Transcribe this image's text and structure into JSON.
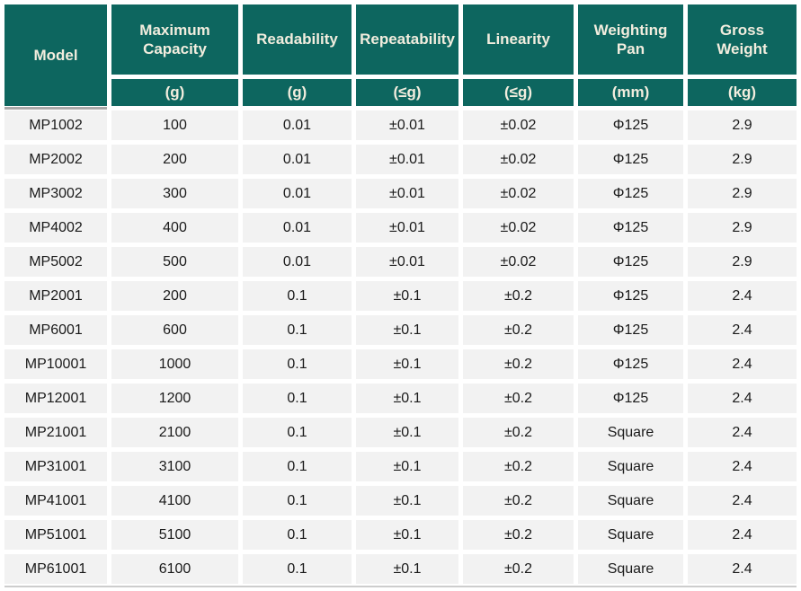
{
  "table": {
    "columns": [
      {
        "label": "Model",
        "unit": ""
      },
      {
        "label": "Maximum Capacity",
        "unit": "(g)"
      },
      {
        "label": "Readability",
        "unit": "(g)"
      },
      {
        "label": "Repeatability",
        "unit": "(≤g)"
      },
      {
        "label": "Linearity",
        "unit": "(≤g)"
      },
      {
        "label": "Weighting Pan",
        "unit": "(mm)"
      },
      {
        "label": "Gross Weight",
        "unit": "(kg)"
      }
    ],
    "rows": [
      [
        "MP1002",
        "100",
        "0.01",
        "±0.01",
        "±0.02",
        "Φ125",
        "2.9"
      ],
      [
        "MP2002",
        "200",
        "0.01",
        "±0.01",
        "±0.02",
        "Φ125",
        "2.9"
      ],
      [
        "MP3002",
        "300",
        "0.01",
        "±0.01",
        "±0.02",
        "Φ125",
        "2.9"
      ],
      [
        "MP4002",
        "400",
        "0.01",
        "±0.01",
        "±0.02",
        "Φ125",
        "2.9"
      ],
      [
        "MP5002",
        "500",
        "0.01",
        "±0.01",
        "±0.02",
        "Φ125",
        "2.9"
      ],
      [
        "MP2001",
        "200",
        "0.1",
        "±0.1",
        "±0.2",
        "Φ125",
        "2.4"
      ],
      [
        "MP6001",
        "600",
        "0.1",
        "±0.1",
        "±0.2",
        "Φ125",
        "2.4"
      ],
      [
        "MP10001",
        "1000",
        "0.1",
        "±0.1",
        "±0.2",
        "Φ125",
        "2.4"
      ],
      [
        "MP12001",
        "1200",
        "0.1",
        "±0.1",
        "±0.2",
        "Φ125",
        "2.4"
      ],
      [
        "MP21001",
        "2100",
        "0.1",
        "±0.1",
        "±0.2",
        "Square",
        "2.4"
      ],
      [
        "MP31001",
        "3100",
        "0.1",
        "±0.1",
        "±0.2",
        "Square",
        "2.4"
      ],
      [
        "MP41001",
        "4100",
        "0.1",
        "±0.1",
        "±0.2",
        "Square",
        "2.4"
      ],
      [
        "MP51001",
        "5100",
        "0.1",
        "±0.1",
        "±0.2",
        "Square",
        "2.4"
      ],
      [
        "MP61001",
        "6100",
        "0.1",
        "±0.1",
        "±0.2",
        "Square",
        "2.4"
      ]
    ]
  },
  "colors": {
    "header_bg": "#0d665f",
    "header_text": "#f2edde",
    "row_bg": "#f2f2f2",
    "body_text": "#1a1a1a",
    "model_shadow_line": "#a9a9a9",
    "bottom_line": "#cdcdcd"
  }
}
